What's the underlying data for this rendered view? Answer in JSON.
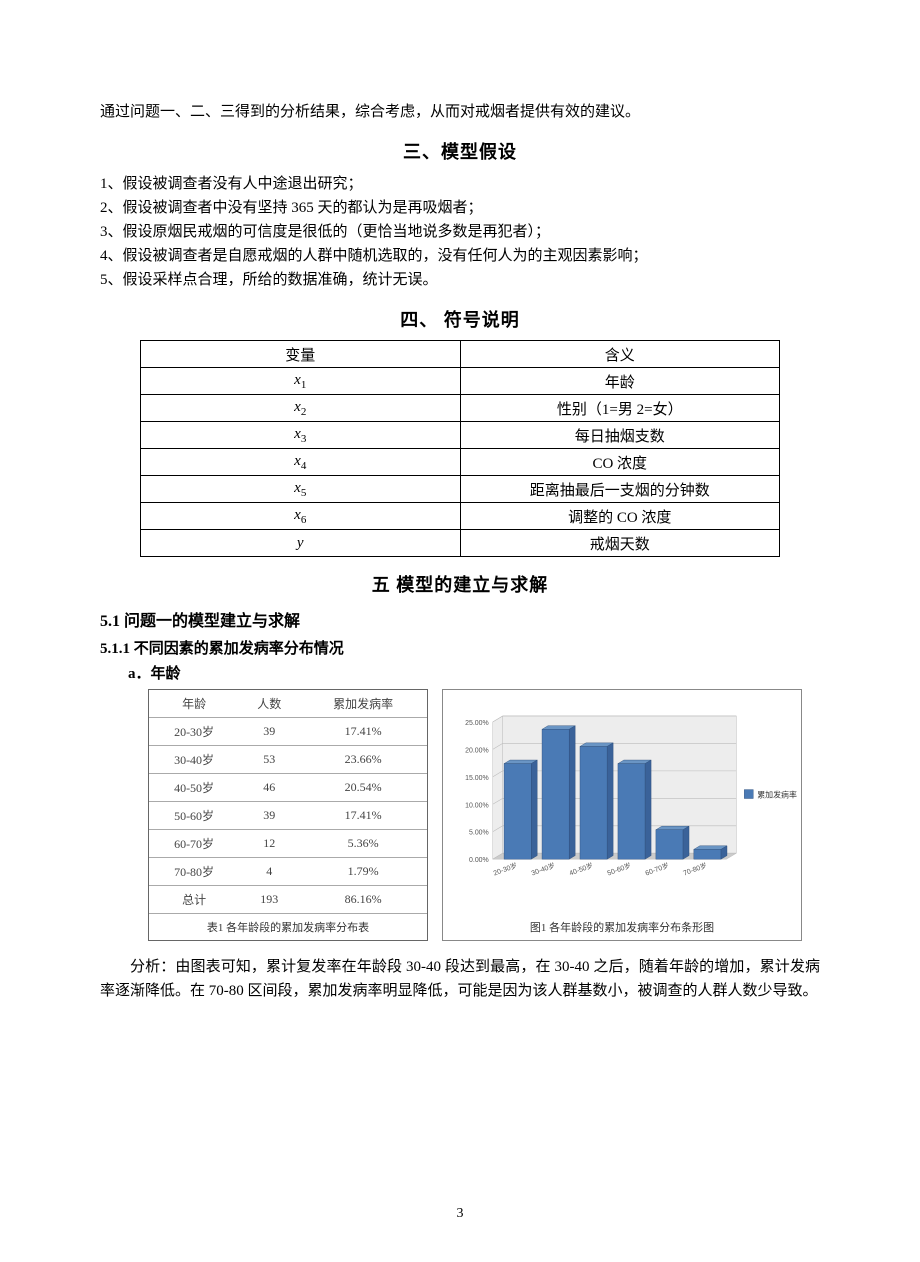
{
  "intro_para": "通过问题一、二、三得到的分析结果，综合考虑，从而对戒烟者提供有效的建议。",
  "section3": {
    "title": "三、模型假设",
    "items": [
      "1、假设被调查者没有人中途退出研究；",
      "2、假设被调查者中没有坚持 365 天的都认为是再吸烟者；",
      "3、假设原烟民戒烟的可信度是很低的（更恰当地说多数是再犯者）；",
      "4、假设被调查者是自愿戒烟的人群中随机选取的，没有任何人为的主观因素影响；",
      "5、假设采样点合理，所给的数据准确，统计无误。"
    ]
  },
  "section4": {
    "title": "四、 符号说明",
    "header": {
      "var": "变量",
      "meaning": "含义"
    },
    "rows": [
      {
        "var": "x₁",
        "meaning": "年龄"
      },
      {
        "var": "x₂",
        "meaning": "性别（1=男  2=女）"
      },
      {
        "var": "x₃",
        "meaning": "每日抽烟支数"
      },
      {
        "var": "x₄",
        "meaning": "CO 浓度"
      },
      {
        "var": "x₅",
        "meaning": "距离抽最后一支烟的分钟数"
      },
      {
        "var": "x₆",
        "meaning": "调整的 CO 浓度"
      },
      {
        "var": "y",
        "meaning": "戒烟天数"
      }
    ]
  },
  "section5": {
    "title": "五  模型的建立与求解",
    "sub1": "5.1 问题一的模型建立与求解",
    "sub11": "5.1.1 不同因素的累加发病率分布情况",
    "item_a": "a．年龄"
  },
  "age_table": {
    "columns": [
      "年龄",
      "人数",
      "累加发病率"
    ],
    "rows": [
      [
        "20-30岁",
        "39",
        "17.41%"
      ],
      [
        "30-40岁",
        "53",
        "23.66%"
      ],
      [
        "40-50岁",
        "46",
        "20.54%"
      ],
      [
        "50-60岁",
        "39",
        "17.41%"
      ],
      [
        "60-70岁",
        "12",
        "5.36%"
      ],
      [
        "70-80岁",
        "4",
        "1.79%"
      ],
      [
        "总计",
        "193",
        "86.16%"
      ]
    ],
    "caption": "表1  各年龄段的累加发病率分布表"
  },
  "age_chart": {
    "type": "bar-3d",
    "categories": [
      "20-30岁",
      "30-40岁",
      "40-50岁",
      "50-60岁",
      "60-70岁",
      "70-80岁"
    ],
    "values": [
      17.41,
      23.66,
      20.54,
      17.41,
      5.36,
      1.79
    ],
    "ylim": [
      0,
      25
    ],
    "ytick_step": 5,
    "ytick_labels": [
      "0.00%",
      "5.00%",
      "10.00%",
      "15.00%",
      "20.00%",
      "25.00%"
    ],
    "bar_front_color": "#4a7ab5",
    "bar_top_color": "#6a95c4",
    "bar_side_color": "#3a6299",
    "floor_color": "#cbcbcb",
    "wall_color": "#ededed",
    "grid_color": "#bcbcbc",
    "plot_bg": "#ffffff",
    "axis_font_size": 7,
    "legend_label": "累加发病率",
    "legend_swatch": "#4a7ab5",
    "caption": "图1  各年龄段的累加发病率分布条形图"
  },
  "analysis_text": "分析：由图表可知，累计复发率在年龄段 30-40 段达到最高，在 30-40 之后，随着年龄的增加，累计发病率逐渐降低。在 70-80 区间段，累加发病率明显降低，可能是因为该人群基数小，被调查的人群人数少导致。",
  "page_number": "3"
}
